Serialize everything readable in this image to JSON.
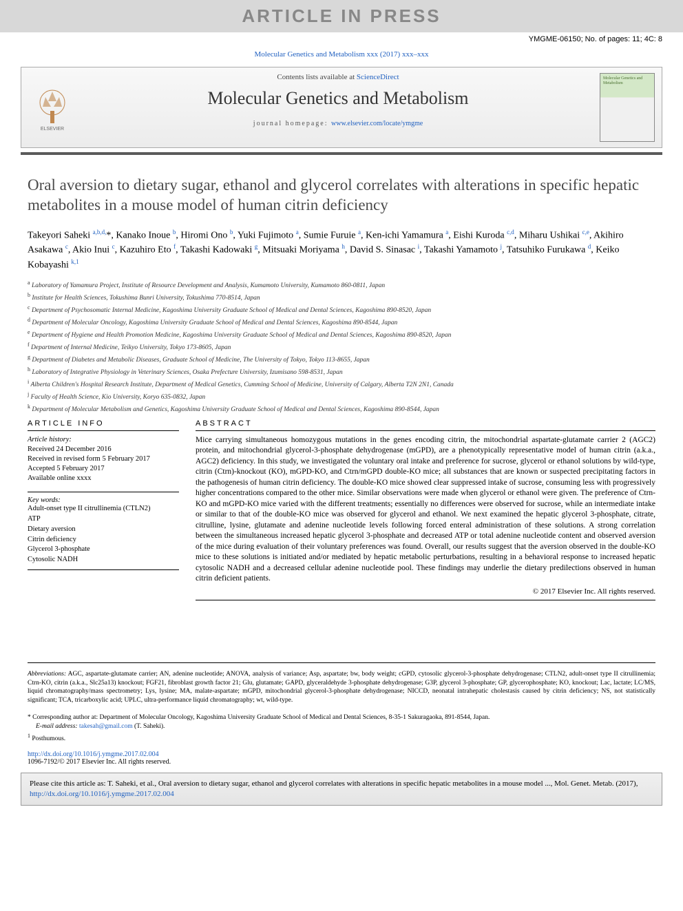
{
  "banner": "ARTICLE IN PRESS",
  "docId": "YMGME-06150; No. of pages: 11; 4C: 8",
  "journalRef": "Molecular Genetics and Metabolism xxx (2017) xxx–xxx",
  "header": {
    "contentsPrefix": "Contents lists available at ",
    "contentsLink": "ScienceDirect",
    "journalName": "Molecular Genetics and Metabolism",
    "homepagePrefix": "journal homepage: ",
    "homepageUrl": "www.elsevier.com/locate/ymgme",
    "coverTitle": "Molecular Genetics and Metabolism",
    "publisherLabel": "ELSEVIER"
  },
  "title": "Oral aversion to dietary sugar, ethanol and glycerol correlates with alterations in specific hepatic metabolites in a mouse model of human citrin deficiency",
  "authorsHtml": "Takeyori Saheki <sup>a,b,d,</sup><span class='star'>*</span>, Kanako Inoue <sup>b</sup>, Hiromi Ono <sup>b</sup>, Yuki Fujimoto <sup>a</sup>, Sumie Furuie <sup>a</sup>, Ken-ichi Yamamura <sup>a</sup>, Eishi Kuroda <sup>c,d</sup>, Miharu Ushikai <sup>c,e</sup>, Akihiro Asakawa <sup>c</sup>, Akio Inui <sup>c</sup>, Kazuhiro Eto <sup>f</sup>, Takashi Kadowaki <sup>g</sup>, Mitsuaki Moriyama <sup>h</sup>, David S. Sinasac <sup>i</sup>, Takashi Yamamoto <sup>j</sup>, Tatsuhiko Furukawa <sup>d</sup>, Keiko Kobayashi <sup>k,1</sup>",
  "affiliations": [
    {
      "sup": "a",
      "text": "Laboratory of Yamamura Project, Institute of Resource Development and Analysis, Kumamoto University, Kumamoto 860-0811, Japan"
    },
    {
      "sup": "b",
      "text": "Institute for Health Sciences, Tokushima Bunri University, Tokushima 770-8514, Japan"
    },
    {
      "sup": "c",
      "text": "Department of Psychosomatic Internal Medicine, Kagoshima University Graduate School of Medical and Dental Sciences, Kagoshima 890-8520, Japan"
    },
    {
      "sup": "d",
      "text": "Department of Molecular Oncology, Kagoshima University Graduate School of Medical and Dental Sciences, Kagoshima 890-8544, Japan"
    },
    {
      "sup": "e",
      "text": "Department of Hygiene and Health Promotion Medicine, Kagoshima University Graduate School of Medical and Dental Sciences, Kagoshima 890-8520, Japan"
    },
    {
      "sup": "f",
      "text": "Department of Internal Medicine, Teikyo University, Tokyo 173-8605, Japan"
    },
    {
      "sup": "g",
      "text": "Department of Diabetes and Metabolic Diseases, Graduate School of Medicine, The University of Tokyo, Tokyo 113-8655, Japan"
    },
    {
      "sup": "h",
      "text": "Laboratory of Integrative Physiology in Veterinary Sciences, Osaka Prefecture University, Izumisano 598-8531, Japan"
    },
    {
      "sup": "i",
      "text": "Alberta Children's Hospital Research Institute, Department of Medical Genetics, Cumming School of Medicine, University of Calgary, Alberta T2N 2N1, Canada"
    },
    {
      "sup": "j",
      "text": "Faculty of Health Science, Kio University, Koryo 635-0832, Japan"
    },
    {
      "sup": "k",
      "text": "Department of Molecular Metabolism and Genetics, Kagoshima University Graduate School of Medical and Dental Sciences, Kagoshima 890-8544, Japan"
    }
  ],
  "infoHead": "ARTICLE INFO",
  "abstractHead": "ABSTRACT",
  "history": {
    "label": "Article history:",
    "received": "Received 24 December 2016",
    "revised": "Received in revised form 5 February 2017",
    "accepted": "Accepted 5 February 2017",
    "online": "Available online xxxx"
  },
  "keywords": {
    "label": "Key words:",
    "items": [
      "Adult-onset type II citrullinemia (CTLN2)",
      "ATP",
      "Dietary aversion",
      "Citrin deficiency",
      "Glycerol 3-phosphate",
      "Cytosolic NADH"
    ]
  },
  "abstract": "Mice carrying simultaneous homozygous mutations in the genes encoding citrin, the mitochondrial aspartate-glutamate carrier 2 (AGC2) protein, and mitochondrial glycerol-3-phosphate dehydrogenase (mGPD), are a phenotypically representative model of human citrin (a.k.a., AGC2) deficiency. In this study, we investigated the voluntary oral intake and preference for sucrose, glycerol or ethanol solutions by wild-type, citrin (Ctrn)-knockout (KO), mGPD-KO, and Ctrn/mGPD double-KO mice; all substances that are known or suspected precipitating factors in the pathogenesis of human citrin deficiency. The double-KO mice showed clear suppressed intake of sucrose, consuming less with progressively higher concentrations compared to the other mice. Similar observations were made when glycerol or ethanol were given. The preference of Ctrn-KO and mGPD-KO mice varied with the different treatments; essentially no differences were observed for sucrose, while an intermediate intake or similar to that of the double-KO mice was observed for glycerol and ethanol. We next examined the hepatic glycerol 3-phosphate, citrate, citrulline, lysine, glutamate and adenine nucleotide levels following forced enteral administration of these solutions. A strong correlation between the simultaneous increased hepatic glycerol 3-phosphate and decreased ATP or total adenine nucleotide content and observed aversion of the mice during evaluation of their voluntary preferences was found. Overall, our results suggest that the aversion observed in the double-KO mice to these solutions is initiated and/or mediated by hepatic metabolic perturbations, resulting in a behavioral response to increased hepatic cytosolic NADH and a decreased cellular adenine nucleotide pool. These findings may underlie the dietary predilections observed in human citrin deficient patients.",
  "copyright": "© 2017 Elsevier Inc. All rights reserved.",
  "abbreviations": {
    "label": "Abbreviations:",
    "text": " AGC, aspartate-glutamate carrier; AN, adenine nucleotide; ANOVA, analysis of variance; Asp, aspartate; bw, body weight; cGPD, cytosolic glycerol-3-phosphate dehydrogenase; CTLN2, adult-onset type II citrullinemia; Ctrn-KO, citrin (a.k.a., Slc25a13) knockout; FGF21, fibroblast growth factor 21; Glu, glutamate; GAPD, glyceraldehyde 3-phosphate dehydrogenase; G3P, glycerol 3-phosphate; GP, glycerophosphate; KO, knockout; Lac, lactate; LC/MS, liquid chromatography/mass spectrometry; Lys, lysine; MA, malate-aspartate; mGPD, mitochondrial glycerol-3-phosphate dehydrogenase; NICCD, neonatal intrahepatic cholestasis caused by citrin deficiency; NS, not statistically significant; TCA, tricarboxylic acid; UPLC, ultra-performance liquid chromatography; wt, wild-type."
  },
  "corresponding": {
    "star": "* ",
    "text": "Corresponding author at: Department of Molecular Oncology, Kagoshima University Graduate School of Medical and Dental Sciences, 8-35-1 Sakuragaoka, 891-8544, Japan.",
    "emailLabel": "E-mail address: ",
    "email": "takesah@gmail.com",
    "emailSuffix": " (T. Saheki).",
    "posthSup": "1",
    "posth": " Posthumous."
  },
  "doi": {
    "url": "http://dx.doi.org/10.1016/j.ymgme.2017.02.004",
    "issn": "1096-7192/© 2017 Elsevier Inc. All rights reserved."
  },
  "citeBox": {
    "prefix": "Please cite this article as: T. Saheki, et al., Oral aversion to dietary sugar, ethanol and glycerol correlates with alterations in specific hepatic metabolites in a mouse model ..., Mol. Genet. Metab. (2017), ",
    "url": "http://dx.doi.org/10.1016/j.ymgme.2017.02.004"
  },
  "colors": {
    "bannerBg": "#d8d8d8",
    "bannerText": "#888888",
    "link": "#2060c0",
    "ruleDark": "#5a5a5a",
    "titleColor": "#4a4a4a"
  }
}
